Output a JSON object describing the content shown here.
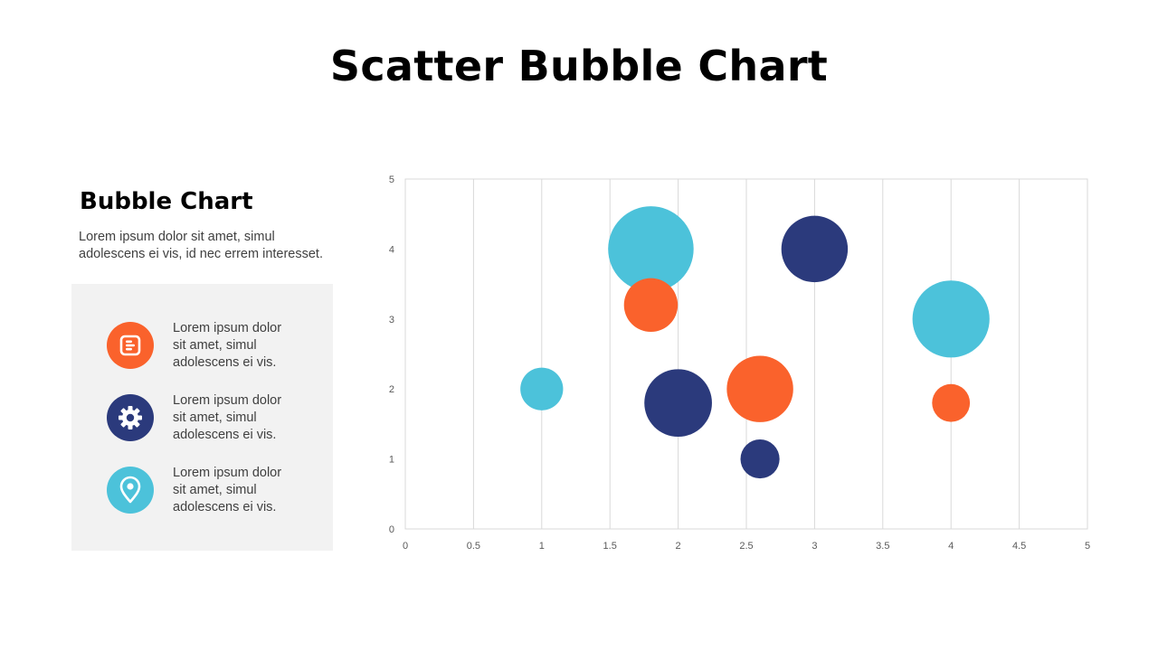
{
  "title": "Scatter Bubble Chart",
  "sidebar": {
    "heading": "Bubble Chart",
    "description": "Lorem ipsum dolor sit amet, simul adolescens ei vis, id nec errem  interesset.",
    "features": [
      {
        "icon": "document-icon",
        "color": "#FA622C",
        "text": "Lorem ipsum dolor\nsit amet, simul\nadolescens ei vis."
      },
      {
        "icon": "gear-icon",
        "color": "#2B3A7C",
        "text": "Lorem ipsum dolor\nsit amet, simul\nadolescens ei vis."
      },
      {
        "icon": "location-pin-icon",
        "color": "#4CC2DA",
        "text": "Lorem ipsum dolor\nsit amet, simul\nadolescens ei vis."
      }
    ]
  },
  "chart_data": {
    "type": "scatter",
    "bubble": true,
    "xlim": [
      0,
      5
    ],
    "ylim": [
      0,
      5
    ],
    "x_ticks": [
      "0",
      "0.5",
      "1",
      "1.5",
      "2",
      "2.5",
      "3",
      "3.5",
      "4",
      "4.5",
      "5"
    ],
    "y_ticks": [
      "0",
      "1",
      "2",
      "3",
      "4",
      "5"
    ],
    "grid": "vertical",
    "legend": "none",
    "colors": {
      "orange": "#FA622C",
      "navy": "#2B3A7C",
      "cyan": "#4CC2DA"
    },
    "points": [
      {
        "x": 1.0,
        "y": 2.0,
        "size": 0.6,
        "color": "cyan"
      },
      {
        "x": 1.8,
        "y": 4.0,
        "size": 2.4,
        "color": "cyan"
      },
      {
        "x": 1.8,
        "y": 3.2,
        "size": 0.95,
        "color": "orange"
      },
      {
        "x": 2.0,
        "y": 1.8,
        "size": 1.5,
        "color": "navy"
      },
      {
        "x": 2.6,
        "y": 2.0,
        "size": 1.45,
        "color": "orange"
      },
      {
        "x": 2.6,
        "y": 1.0,
        "size": 0.5,
        "color": "navy"
      },
      {
        "x": 3.0,
        "y": 4.0,
        "size": 1.45,
        "color": "navy"
      },
      {
        "x": 4.0,
        "y": 3.0,
        "size": 1.95,
        "color": "cyan"
      },
      {
        "x": 4.0,
        "y": 1.8,
        "size": 0.47,
        "color": "orange"
      }
    ]
  }
}
